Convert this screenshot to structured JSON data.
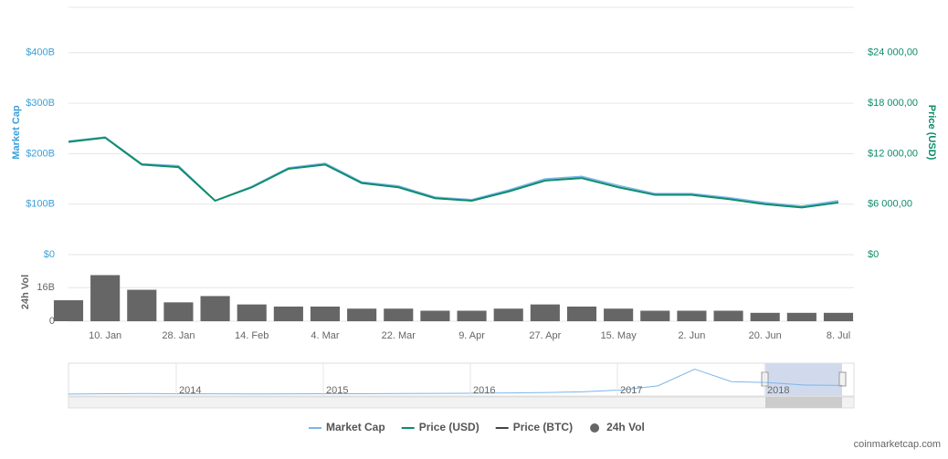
{
  "chart_data": {
    "type": "line",
    "y_axis_label": "Market Cap",
    "y2_axis_label": "Price (USD)",
    "categories": [
      null,
      "10. Jan",
      null,
      "28. Jan",
      null,
      "14. Feb",
      null,
      "4. Mar",
      null,
      "22. Mar",
      null,
      "9. Apr",
      null,
      "27. Apr",
      null,
      "15. May",
      null,
      "2. Jun",
      null,
      "20. Jun",
      null,
      "8. Jul"
    ],
    "series": [
      {
        "name": "Market Cap",
        "color": "#7cb5ec",
        "values": [
          225,
          233,
          180,
          176,
          107,
          135,
          172,
          181,
          144,
          136,
          114,
          109,
          128,
          150,
          155,
          137,
          121,
          121,
          113,
          103,
          96,
          107
        ]
      },
      {
        "name": "Price (USD)",
        "color": "#0e8c6a",
        "axis": "y2",
        "values": [
          13400,
          13900,
          10700,
          10400,
          6400,
          8000,
          10200,
          10700,
          8500,
          8000,
          6700,
          6400,
          7500,
          8800,
          9100,
          8000,
          7100,
          7100,
          6600,
          6000,
          5600,
          6200
        ]
      },
      {
        "name": "Price (BTC)",
        "color": "#434348",
        "visible": false
      }
    ],
    "ylim": [
      0,
      490
    ],
    "yticks": [
      {
        "value": 0,
        "label": "$0"
      },
      {
        "value": 100,
        "label": "$100B"
      },
      {
        "value": 200,
        "label": "$200B"
      },
      {
        "value": 300,
        "label": "$300B"
      },
      {
        "value": 400,
        "label": "$400B"
      }
    ],
    "y2lim": [
      0,
      29400
    ],
    "y2ticks": [
      {
        "value": 0,
        "label": "$0"
      },
      {
        "value": 6000,
        "label": "$6 000,00"
      },
      {
        "value": 12000,
        "label": "$12 000,00"
      },
      {
        "value": 18000,
        "label": "$18 000,00"
      },
      {
        "value": 24000,
        "label": "$24 000,00"
      }
    ],
    "grid": true,
    "volume": {
      "name": "24h Vol",
      "axis_label": "24h Vol",
      "color": "#666666",
      "values": [
        10,
        22,
        15,
        9,
        12,
        8,
        7,
        7,
        6,
        6,
        5,
        5,
        6,
        8,
        7,
        6,
        5,
        5,
        5,
        4,
        4,
        4
      ],
      "ylim": [
        0,
        27
      ],
      "yticks": [
        0,
        {
          "value": 16,
          "label": "16B"
        }
      ]
    },
    "navigator": {
      "years": [
        "2014",
        "2015",
        "2016",
        "2017",
        "2018"
      ],
      "color": "#7cb5ec",
      "values": [
        1,
        5,
        8,
        6,
        4,
        3,
        4,
        5,
        6,
        8,
        10,
        12,
        15,
        20,
        30,
        50,
        100,
        300,
        150,
        140,
        110,
        105
      ],
      "ylim": [
        0,
        350
      ]
    },
    "credit": "coinmarketcap.com"
  }
}
